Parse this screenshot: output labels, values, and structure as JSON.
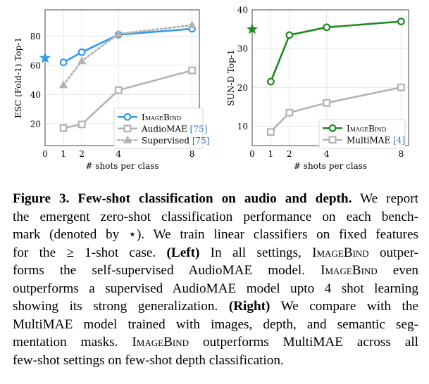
{
  "chart_data": [
    {
      "type": "line",
      "ylabel": "ESC (Fold-1) Top-1",
      "xlabel": "# shots per class",
      "xlim": [
        0,
        8.4
      ],
      "ylim": [
        5,
        98
      ],
      "xticks": [
        0,
        1,
        2,
        4,
        8
      ],
      "yticks": [
        20,
        40,
        60,
        80
      ],
      "zero_shot_star": {
        "x": 0,
        "y": 65,
        "color": "#2e9af0"
      },
      "series": [
        {
          "name": "ImageBind",
          "marker": "circle",
          "dash": "solid",
          "color": "#2e9af0",
          "x": [
            1,
            2,
            4,
            8
          ],
          "y": [
            62,
            69,
            81,
            85
          ]
        },
        {
          "name": "AudioMAE [75]",
          "marker": "square",
          "dash": "solid",
          "color": "#b3b3b3",
          "x": [
            1,
            2,
            4,
            8
          ],
          "y": [
            17,
            19.5,
            43,
            56.5
          ]
        },
        {
          "name": "Supervised [75]",
          "marker": "triangle",
          "dash": "dotted",
          "color": "#b3b3b3",
          "x": [
            1,
            2,
            4,
            8
          ],
          "y": [
            46.5,
            63,
            81.5,
            87.5
          ]
        }
      ],
      "legend_position": "bottom-right",
      "grid": true
    },
    {
      "type": "line",
      "ylabel": "SUN-D Top-1",
      "xlabel": "# shots per class",
      "xlim": [
        0,
        8.4
      ],
      "ylim": [
        5,
        40
      ],
      "xticks": [
        0,
        1,
        2,
        4,
        8
      ],
      "yticks": [
        10,
        20,
        30,
        40
      ],
      "zero_shot_star": {
        "x": 0,
        "y": 35,
        "color": "#1e8a1e"
      },
      "series": [
        {
          "name": "ImageBind",
          "marker": "circle",
          "dash": "solid",
          "color": "#1e8a1e",
          "x": [
            1,
            2,
            4,
            8
          ],
          "y": [
            21.5,
            33.5,
            35.5,
            37
          ]
        },
        {
          "name": "MultiMAE [4]",
          "marker": "square",
          "dash": "solid",
          "color": "#b3b3b3",
          "x": [
            1,
            2,
            4,
            8
          ],
          "y": [
            8.5,
            13.5,
            16,
            20
          ]
        }
      ],
      "legend_position": "bottom-right",
      "grid": true
    }
  ],
  "caption": {
    "lines": [
      [
        {
          "t": "Figure 3. Few-shot classification on audio and depth.",
          "s": "b"
        },
        {
          "t": " We report"
        }
      ],
      [
        {
          "t": "the emergent zero-shot classification performance on each bench-"
        }
      ],
      [
        {
          "t": "mark (denoted by ⋆).  We train linear classifiers on fixed features"
        }
      ],
      [
        {
          "t": "for the ≥ 1-shot case. "
        },
        {
          "t": "(Left)",
          "s": "b"
        },
        {
          "t": " In all settings, "
        },
        {
          "t": "ImageBind",
          "s": "sc"
        },
        {
          "t": " outper-"
        }
      ],
      [
        {
          "t": "forms the self-supervised AudioMAE model.  "
        },
        {
          "t": "ImageBind",
          "s": "sc"
        },
        {
          "t": " even"
        }
      ],
      [
        {
          "t": "outperforms a supervised AudioMAE model upto 4 shot learning"
        }
      ],
      [
        {
          "t": "showing its strong generalization.  "
        },
        {
          "t": "(Right)",
          "s": "b"
        },
        {
          "t": " We compare with the"
        }
      ],
      [
        {
          "t": "MultiMAE model trained with images, depth, and semantic seg-"
        }
      ],
      [
        {
          "t": "mentation masks. "
        },
        {
          "t": "ImageBind",
          "s": "sc"
        },
        {
          "t": " outperforms MultiMAE across all"
        }
      ],
      [
        {
          "t": "few-shot settings on few-shot depth classification."
        }
      ]
    ]
  }
}
